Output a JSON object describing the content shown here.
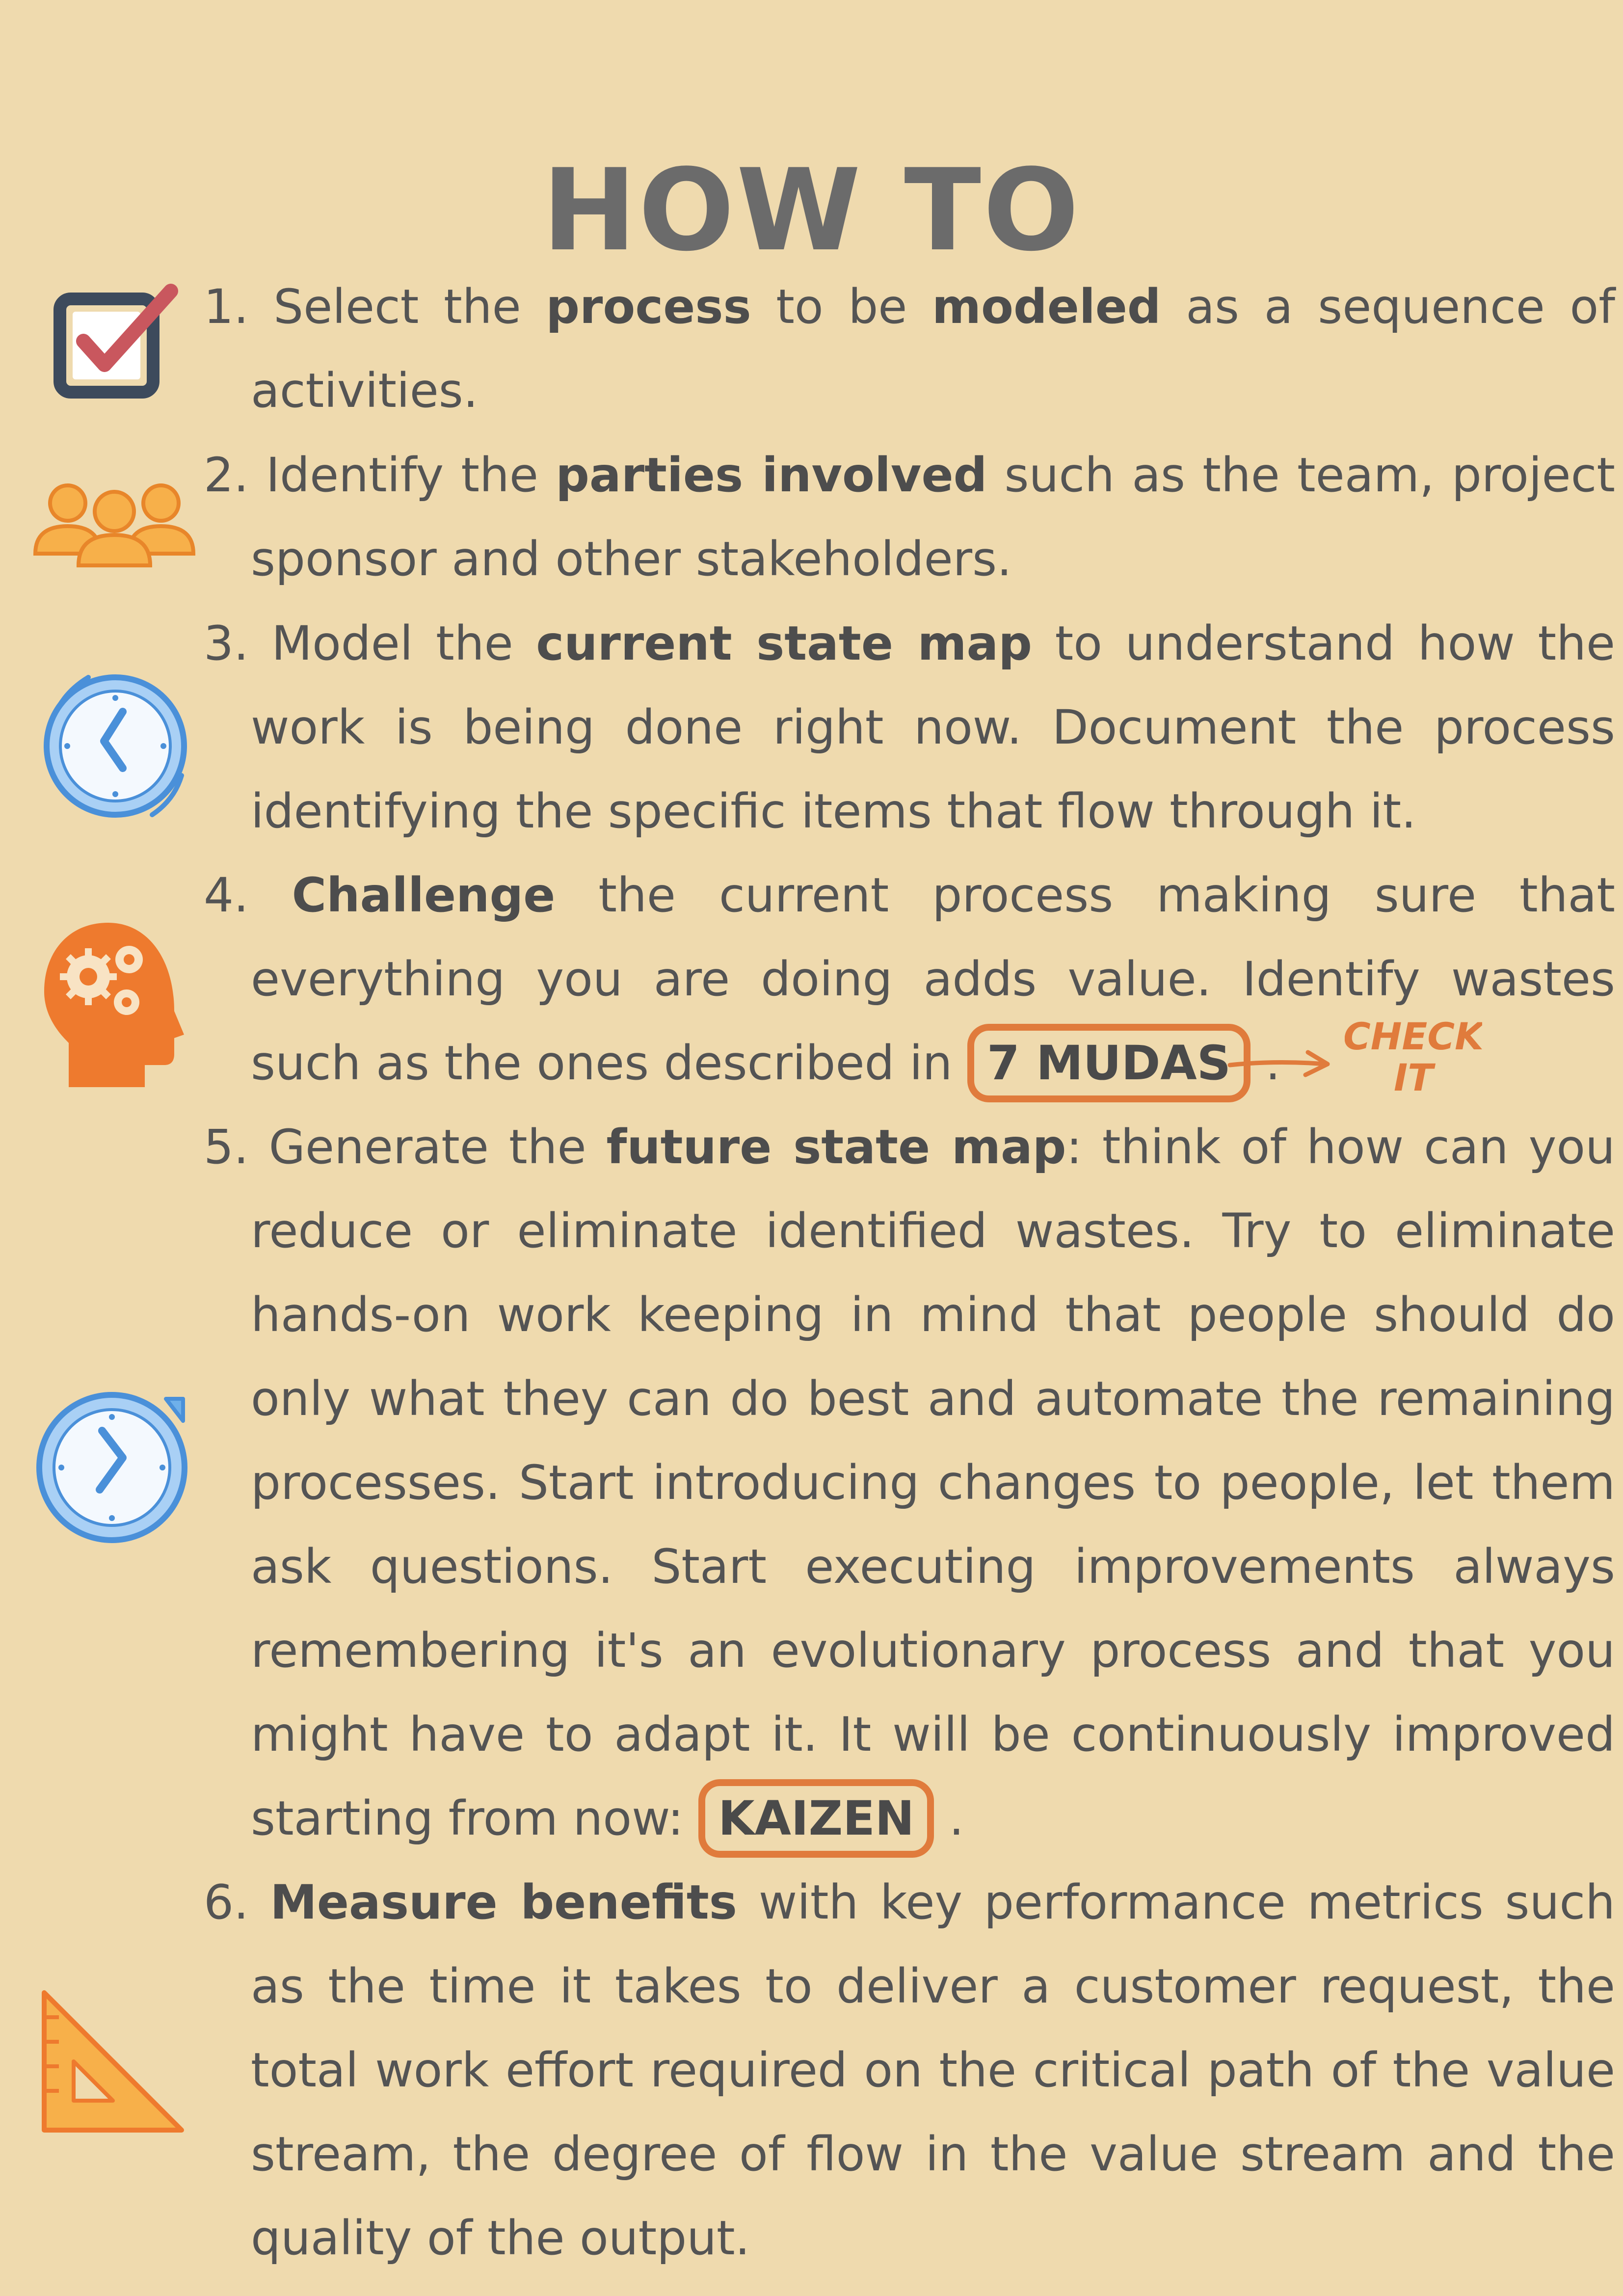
{
  "title": "HOW TO",
  "steps": [
    {
      "num": "1.",
      "t1": "Select the ",
      "b1": "process",
      "t2": " to be ",
      "b2": "modeled",
      "t3": " as a sequence of activities."
    },
    {
      "num": "2.",
      "t1": "Identify the ",
      "b1": "parties involved",
      "t2": " such as the team, project sponsor and other stakeholders."
    },
    {
      "num": "3.",
      "t1": "Model the ",
      "b1": "current state map",
      "t2": " to understand how the work is being done right now. Document the process identifying the specific items that flow through it."
    },
    {
      "num": "4.",
      "b1": "Challenge",
      "t1": " the current process making sure that everything you are doing adds value. Identify wastes such as the ones described in ",
      "badge": "7 MUDAS",
      "t2": " .",
      "aside": "CHECK IT"
    },
    {
      "num": "5.",
      "t1": "Generate the ",
      "b1": "future state map",
      "t2": ": think of how can you reduce or eliminate identified wastes. Try to eliminate hands-on work keeping in mind that people should do only what they can do best and automate the remaining processes. Start introducing changes to people, let them ask questions. Start executing improvements always remembering it's an evolutionary process and that you might have to adapt it. It will be continuously improved starting from now: ",
      "badge": "KAIZEN",
      "t3": " ."
    },
    {
      "num": "6.",
      "b1": "Measure benefits",
      "t1": " with key performance metrics such as the time it takes to deliver a customer request, the total work effort required on the critical path of the value stream, the degree of flow in the value stream and the quality of the output."
    }
  ],
  "colors": {
    "background": "#EFDAAE",
    "text": "#545454",
    "accent_orange": "#E07B3C",
    "icon_orange": "#F39B35",
    "checkbox_navy": "#3D4A5C",
    "check_red": "#C9575E",
    "clock_blue": "#4A90D9"
  },
  "icons": [
    "checkbox-icon",
    "people-group-icon",
    "clock-icon",
    "head-gears-icon",
    "clock-refresh-icon",
    "set-square-icon",
    "arrow-icon"
  ]
}
